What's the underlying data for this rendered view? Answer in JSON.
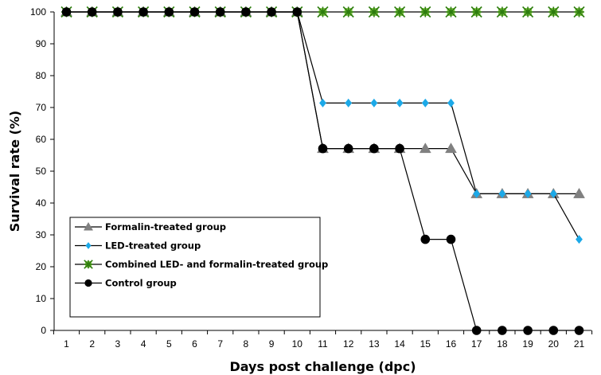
{
  "chart_data": {
    "type": "line",
    "title": "",
    "xlabel": "Days post challenge (dpc)",
    "ylabel": "Survival rate (%)",
    "x": [
      1,
      2,
      3,
      4,
      5,
      6,
      7,
      8,
      9,
      10,
      11,
      12,
      13,
      14,
      15,
      16,
      17,
      18,
      19,
      20,
      21
    ],
    "x_ticks": [
      "1",
      "2",
      "3",
      "4",
      "5",
      "6",
      "7",
      "8",
      "9",
      "10",
      "11",
      "12",
      "13",
      "14",
      "15",
      "16",
      "17",
      "18",
      "19",
      "20",
      "21"
    ],
    "ylim": [
      0,
      100
    ],
    "y_ticks": [
      "0",
      "10",
      "20",
      "30",
      "40",
      "50",
      "60",
      "70",
      "80",
      "90",
      "100"
    ],
    "grid": false,
    "legend_position": "bottom-left",
    "series": [
      {
        "name": "Formalin-treated group",
        "marker": "triangle",
        "color": "#808080",
        "values": [
          100,
          100,
          100,
          100,
          100,
          100,
          100,
          100,
          100,
          100,
          57.1,
          57.1,
          57.1,
          57.1,
          57.1,
          57.1,
          42.9,
          42.9,
          42.9,
          42.9,
          42.9
        ]
      },
      {
        "name": "LED-treated group",
        "marker": "diamond",
        "color": "#1CA9E8",
        "values": [
          100,
          100,
          100,
          100,
          100,
          100,
          100,
          100,
          100,
          100,
          71.4,
          71.4,
          71.4,
          71.4,
          71.4,
          71.4,
          42.9,
          42.9,
          42.9,
          42.9,
          28.6
        ]
      },
      {
        "name": "Combined LED- and formalin-treated group",
        "marker": "star",
        "color": "#2E7D0F",
        "fill": "#7DC241",
        "values": [
          100,
          100,
          100,
          100,
          100,
          100,
          100,
          100,
          100,
          100,
          100,
          100,
          100,
          100,
          100,
          100,
          100,
          100,
          100,
          100,
          100
        ]
      },
      {
        "name": "Control group",
        "marker": "circle",
        "color": "#000000",
        "values": [
          100,
          100,
          100,
          100,
          100,
          100,
          100,
          100,
          100,
          100,
          57.1,
          57.1,
          57.1,
          57.1,
          28.6,
          28.6,
          0,
          0,
          0,
          0,
          0
        ]
      }
    ]
  }
}
